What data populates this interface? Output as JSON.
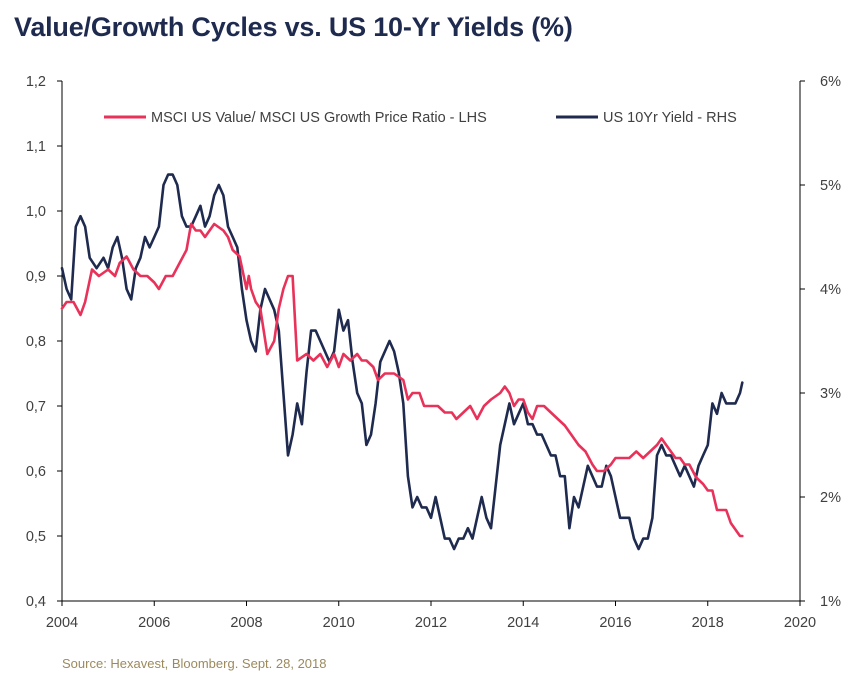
{
  "title": "Value/Growth Cycles vs. US 10-Yr Yields (%)",
  "source": "Source: Hexavest, Bloomberg. Sept. 28, 2018",
  "colors": {
    "ratio": "#e8325a",
    "yield": "#1f2a4f",
    "axis": "#000000",
    "title": "#1f2a4f",
    "source": "#9c8a5d"
  },
  "chart_data": {
    "type": "line",
    "title": "Value/Growth Cycles vs. US 10-Yr Yields (%)",
    "xlim": [
      2004,
      2020
    ],
    "x_ticks": [
      "2004",
      "2006",
      "2008",
      "2010",
      "2012",
      "2014",
      "2016",
      "2018",
      "2020"
    ],
    "y_left": {
      "lim": [
        0.4,
        1.2
      ],
      "ticks": [
        "0,4",
        "0,5",
        "0,6",
        "0,7",
        "0,8",
        "0,9",
        "1,0",
        "1,1",
        "1,2"
      ]
    },
    "y_right": {
      "lim": [
        1,
        6
      ],
      "ticks": [
        "1%",
        "2%",
        "3%",
        "4%",
        "5%",
        "6%"
      ]
    },
    "legend_position": "top",
    "grid": false,
    "series": [
      {
        "name": "MSCI US Value/ MSCI US Growth Price Ratio - LHS",
        "axis": "left",
        "color": "#e8325a",
        "points": [
          [
            2004.0,
            0.85
          ],
          [
            2004.1,
            0.86
          ],
          [
            2004.25,
            0.86
          ],
          [
            2004.4,
            0.84
          ],
          [
            2004.5,
            0.86
          ],
          [
            2004.65,
            0.91
          ],
          [
            2004.8,
            0.9
          ],
          [
            2005.0,
            0.91
          ],
          [
            2005.15,
            0.9
          ],
          [
            2005.25,
            0.92
          ],
          [
            2005.4,
            0.93
          ],
          [
            2005.55,
            0.91
          ],
          [
            2005.7,
            0.9
          ],
          [
            2005.85,
            0.9
          ],
          [
            2006.0,
            0.89
          ],
          [
            2006.1,
            0.88
          ],
          [
            2006.25,
            0.9
          ],
          [
            2006.4,
            0.9
          ],
          [
            2006.55,
            0.92
          ],
          [
            2006.7,
            0.94
          ],
          [
            2006.8,
            0.98
          ],
          [
            2006.9,
            0.97
          ],
          [
            2007.0,
            0.97
          ],
          [
            2007.1,
            0.96
          ],
          [
            2007.2,
            0.97
          ],
          [
            2007.3,
            0.98
          ],
          [
            2007.5,
            0.97
          ],
          [
            2007.6,
            0.96
          ],
          [
            2007.7,
            0.94
          ],
          [
            2007.85,
            0.93
          ],
          [
            2008.0,
            0.88
          ],
          [
            2008.05,
            0.9
          ],
          [
            2008.1,
            0.88
          ],
          [
            2008.2,
            0.86
          ],
          [
            2008.3,
            0.85
          ],
          [
            2008.45,
            0.78
          ],
          [
            2008.6,
            0.8
          ],
          [
            2008.7,
            0.85
          ],
          [
            2008.8,
            0.88
          ],
          [
            2008.9,
            0.9
          ],
          [
            2009.0,
            0.9
          ],
          [
            2009.1,
            0.77
          ],
          [
            2009.3,
            0.78
          ],
          [
            2009.45,
            0.77
          ],
          [
            2009.6,
            0.78
          ],
          [
            2009.75,
            0.76
          ],
          [
            2009.9,
            0.78
          ],
          [
            2010.0,
            0.76
          ],
          [
            2010.1,
            0.78
          ],
          [
            2010.25,
            0.77
          ],
          [
            2010.4,
            0.78
          ],
          [
            2010.5,
            0.77
          ],
          [
            2010.6,
            0.77
          ],
          [
            2010.75,
            0.76
          ],
          [
            2010.85,
            0.74
          ],
          [
            2011.0,
            0.75
          ],
          [
            2011.2,
            0.75
          ],
          [
            2011.4,
            0.74
          ],
          [
            2011.5,
            0.71
          ],
          [
            2011.6,
            0.72
          ],
          [
            2011.75,
            0.72
          ],
          [
            2011.85,
            0.7
          ],
          [
            2012.0,
            0.7
          ],
          [
            2012.15,
            0.7
          ],
          [
            2012.3,
            0.69
          ],
          [
            2012.45,
            0.69
          ],
          [
            2012.55,
            0.68
          ],
          [
            2012.7,
            0.69
          ],
          [
            2012.85,
            0.7
          ],
          [
            2013.0,
            0.68
          ],
          [
            2013.15,
            0.7
          ],
          [
            2013.3,
            0.71
          ],
          [
            2013.5,
            0.72
          ],
          [
            2013.6,
            0.73
          ],
          [
            2013.7,
            0.72
          ],
          [
            2013.8,
            0.7
          ],
          [
            2013.9,
            0.71
          ],
          [
            2014.0,
            0.71
          ],
          [
            2014.1,
            0.69
          ],
          [
            2014.2,
            0.68
          ],
          [
            2014.3,
            0.7
          ],
          [
            2014.45,
            0.7
          ],
          [
            2014.6,
            0.69
          ],
          [
            2014.75,
            0.68
          ],
          [
            2014.9,
            0.67
          ],
          [
            2015.0,
            0.66
          ],
          [
            2015.1,
            0.65
          ],
          [
            2015.2,
            0.64
          ],
          [
            2015.35,
            0.63
          ],
          [
            2015.5,
            0.61
          ],
          [
            2015.6,
            0.6
          ],
          [
            2015.75,
            0.6
          ],
          [
            2015.9,
            0.61
          ],
          [
            2016.0,
            0.62
          ],
          [
            2016.1,
            0.62
          ],
          [
            2016.2,
            0.62
          ],
          [
            2016.3,
            0.62
          ],
          [
            2016.45,
            0.63
          ],
          [
            2016.6,
            0.62
          ],
          [
            2016.75,
            0.63
          ],
          [
            2016.9,
            0.64
          ],
          [
            2017.0,
            0.65
          ],
          [
            2017.1,
            0.64
          ],
          [
            2017.2,
            0.63
          ],
          [
            2017.3,
            0.62
          ],
          [
            2017.4,
            0.62
          ],
          [
            2017.5,
            0.61
          ],
          [
            2017.6,
            0.61
          ],
          [
            2017.75,
            0.59
          ],
          [
            2017.9,
            0.58
          ],
          [
            2018.0,
            0.57
          ],
          [
            2018.1,
            0.57
          ],
          [
            2018.2,
            0.54
          ],
          [
            2018.3,
            0.54
          ],
          [
            2018.4,
            0.54
          ],
          [
            2018.5,
            0.52
          ],
          [
            2018.6,
            0.51
          ],
          [
            2018.7,
            0.5
          ],
          [
            2018.75,
            0.5
          ]
        ]
      },
      {
        "name": "US 10Yr Yield - RHS",
        "axis": "right",
        "color": "#1f2a4f",
        "points": [
          [
            2004.0,
            4.2
          ],
          [
            2004.1,
            4.0
          ],
          [
            2004.2,
            3.9
          ],
          [
            2004.3,
            4.6
          ],
          [
            2004.4,
            4.7
          ],
          [
            2004.5,
            4.6
          ],
          [
            2004.6,
            4.3
          ],
          [
            2004.75,
            4.2
          ],
          [
            2004.9,
            4.3
          ],
          [
            2005.0,
            4.2
          ],
          [
            2005.1,
            4.4
          ],
          [
            2005.2,
            4.5
          ],
          [
            2005.3,
            4.3
          ],
          [
            2005.4,
            4.0
          ],
          [
            2005.5,
            3.9
          ],
          [
            2005.6,
            4.2
          ],
          [
            2005.7,
            4.3
          ],
          [
            2005.8,
            4.5
          ],
          [
            2005.9,
            4.4
          ],
          [
            2006.0,
            4.5
          ],
          [
            2006.1,
            4.6
          ],
          [
            2006.2,
            5.0
          ],
          [
            2006.3,
            5.1
          ],
          [
            2006.4,
            5.1
          ],
          [
            2006.5,
            5.0
          ],
          [
            2006.6,
            4.7
          ],
          [
            2006.7,
            4.6
          ],
          [
            2006.8,
            4.6
          ],
          [
            2006.9,
            4.7
          ],
          [
            2007.0,
            4.8
          ],
          [
            2007.1,
            4.6
          ],
          [
            2007.2,
            4.7
          ],
          [
            2007.3,
            4.9
          ],
          [
            2007.4,
            5.0
          ],
          [
            2007.5,
            4.9
          ],
          [
            2007.6,
            4.6
          ],
          [
            2007.7,
            4.5
          ],
          [
            2007.8,
            4.4
          ],
          [
            2007.9,
            4.0
          ],
          [
            2008.0,
            3.7
          ],
          [
            2008.1,
            3.5
          ],
          [
            2008.2,
            3.4
          ],
          [
            2008.3,
            3.8
          ],
          [
            2008.4,
            4.0
          ],
          [
            2008.5,
            3.9
          ],
          [
            2008.6,
            3.8
          ],
          [
            2008.7,
            3.6
          ],
          [
            2008.8,
            3.0
          ],
          [
            2008.9,
            2.4
          ],
          [
            2009.0,
            2.6
          ],
          [
            2009.1,
            2.9
          ],
          [
            2009.2,
            2.7
          ],
          [
            2009.3,
            3.2
          ],
          [
            2009.4,
            3.6
          ],
          [
            2009.5,
            3.6
          ],
          [
            2009.6,
            3.5
          ],
          [
            2009.7,
            3.4
          ],
          [
            2009.8,
            3.3
          ],
          [
            2009.9,
            3.4
          ],
          [
            2010.0,
            3.8
          ],
          [
            2010.1,
            3.6
          ],
          [
            2010.2,
            3.7
          ],
          [
            2010.3,
            3.3
          ],
          [
            2010.4,
            3.0
          ],
          [
            2010.5,
            2.9
          ],
          [
            2010.6,
            2.5
          ],
          [
            2010.7,
            2.6
          ],
          [
            2010.8,
            2.9
          ],
          [
            2010.9,
            3.3
          ],
          [
            2011.0,
            3.4
          ],
          [
            2011.1,
            3.5
          ],
          [
            2011.2,
            3.4
          ],
          [
            2011.3,
            3.2
          ],
          [
            2011.4,
            2.9
          ],
          [
            2011.5,
            2.2
          ],
          [
            2011.6,
            1.9
          ],
          [
            2011.7,
            2.0
          ],
          [
            2011.8,
            1.9
          ],
          [
            2011.9,
            1.9
          ],
          [
            2012.0,
            1.8
          ],
          [
            2012.1,
            2.0
          ],
          [
            2012.2,
            1.8
          ],
          [
            2012.3,
            1.6
          ],
          [
            2012.4,
            1.6
          ],
          [
            2012.5,
            1.5
          ],
          [
            2012.6,
            1.6
          ],
          [
            2012.7,
            1.6
          ],
          [
            2012.8,
            1.7
          ],
          [
            2012.9,
            1.6
          ],
          [
            2013.0,
            1.8
          ],
          [
            2013.1,
            2.0
          ],
          [
            2013.2,
            1.8
          ],
          [
            2013.3,
            1.7
          ],
          [
            2013.4,
            2.1
          ],
          [
            2013.5,
            2.5
          ],
          [
            2013.6,
            2.7
          ],
          [
            2013.7,
            2.9
          ],
          [
            2013.8,
            2.7
          ],
          [
            2013.9,
            2.8
          ],
          [
            2014.0,
            2.9
          ],
          [
            2014.1,
            2.7
          ],
          [
            2014.2,
            2.7
          ],
          [
            2014.3,
            2.6
          ],
          [
            2014.4,
            2.6
          ],
          [
            2014.5,
            2.5
          ],
          [
            2014.6,
            2.4
          ],
          [
            2014.7,
            2.4
          ],
          [
            2014.8,
            2.2
          ],
          [
            2014.9,
            2.2
          ],
          [
            2015.0,
            1.7
          ],
          [
            2015.1,
            2.0
          ],
          [
            2015.2,
            1.9
          ],
          [
            2015.3,
            2.1
          ],
          [
            2015.4,
            2.3
          ],
          [
            2015.5,
            2.2
          ],
          [
            2015.6,
            2.1
          ],
          [
            2015.7,
            2.1
          ],
          [
            2015.8,
            2.3
          ],
          [
            2015.9,
            2.2
          ],
          [
            2016.0,
            2.0
          ],
          [
            2016.1,
            1.8
          ],
          [
            2016.2,
            1.8
          ],
          [
            2016.3,
            1.8
          ],
          [
            2016.4,
            1.6
          ],
          [
            2016.5,
            1.5
          ],
          [
            2016.6,
            1.6
          ],
          [
            2016.7,
            1.6
          ],
          [
            2016.8,
            1.8
          ],
          [
            2016.9,
            2.4
          ],
          [
            2017.0,
            2.5
          ],
          [
            2017.1,
            2.4
          ],
          [
            2017.2,
            2.4
          ],
          [
            2017.3,
            2.3
          ],
          [
            2017.4,
            2.2
          ],
          [
            2017.5,
            2.3
          ],
          [
            2017.6,
            2.2
          ],
          [
            2017.7,
            2.1
          ],
          [
            2017.8,
            2.3
          ],
          [
            2017.9,
            2.4
          ],
          [
            2018.0,
            2.5
          ],
          [
            2018.05,
            2.7
          ],
          [
            2018.1,
            2.9
          ],
          [
            2018.2,
            2.8
          ],
          [
            2018.3,
            3.0
          ],
          [
            2018.4,
            2.9
          ],
          [
            2018.5,
            2.9
          ],
          [
            2018.6,
            2.9
          ],
          [
            2018.7,
            3.0
          ],
          [
            2018.75,
            3.1
          ]
        ]
      }
    ]
  }
}
